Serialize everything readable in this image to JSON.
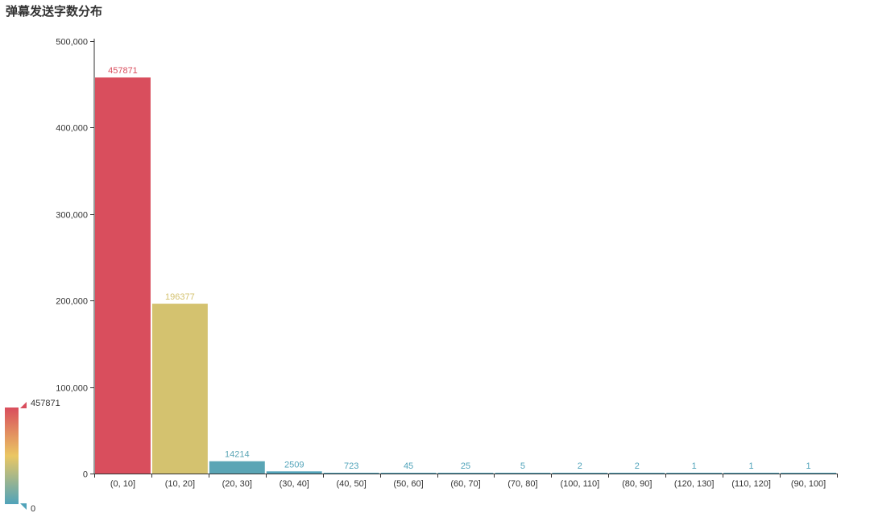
{
  "chart_data": {
    "type": "bar",
    "title": "弹幕发送字数分布",
    "categories": [
      "(0, 10]",
      "(10, 20]",
      "(20, 30]",
      "(30, 40]",
      "(40, 50]",
      "(50, 60]",
      "(60, 70]",
      "(70, 80]",
      "(100, 110]",
      "(80, 90]",
      "(120, 130]",
      "(110, 120]",
      "(90, 100]"
    ],
    "values": [
      457871,
      196377,
      14214,
      2509,
      723,
      45,
      25,
      5,
      2,
      2,
      1,
      1,
      1
    ],
    "y_ticks": [
      "0",
      "100,000",
      "200,000",
      "300,000",
      "400,000",
      "500,000"
    ],
    "y_tick_values": [
      0,
      100000,
      200000,
      300000,
      400000,
      500000
    ],
    "ylim": [
      0,
      500000
    ],
    "xlabel": "",
    "ylabel": "",
    "grid": false,
    "show_data_labels": true,
    "visual_map": {
      "min": 0,
      "max": 457871,
      "min_label": "0",
      "max_label": "457871",
      "placement": "bottom-left",
      "colors": [
        "#50a3ba",
        "#eac763",
        "#d94e5d"
      ]
    }
  }
}
